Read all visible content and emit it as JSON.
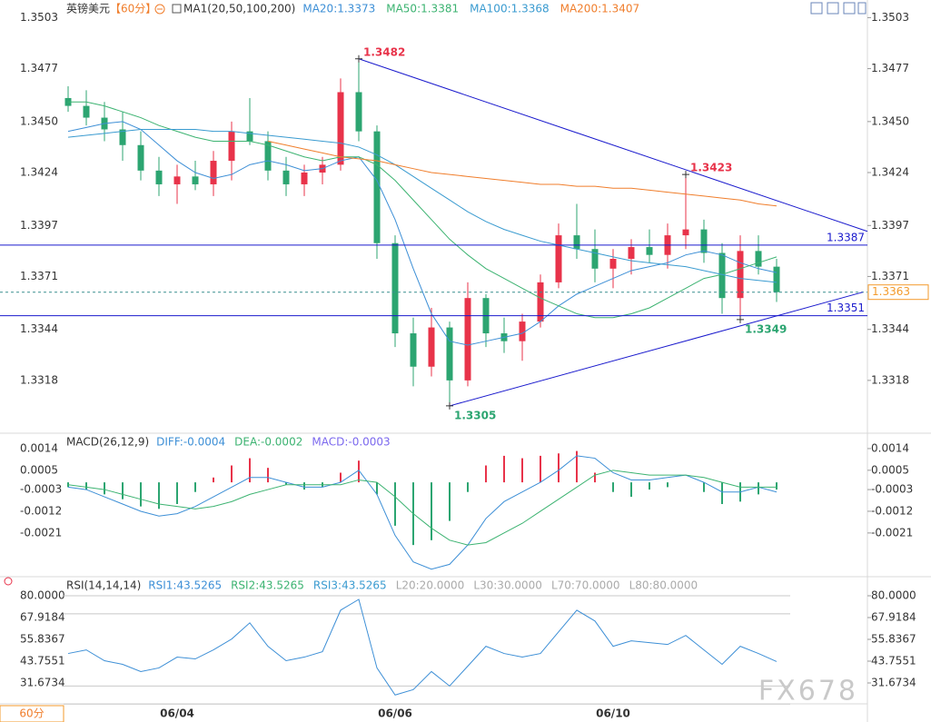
{
  "header": {
    "symbol": "英镑美元",
    "period": "【60分】",
    "ma_title": "MA1(20,50,100,200)"
  },
  "chart_data": [
    {
      "type": "candlestick",
      "categories": [
        null,
        null,
        null,
        null,
        null,
        null,
        "06/04",
        null,
        null,
        null,
        null,
        null,
        null,
        null,
        null,
        null,
        null,
        null,
        "06/06",
        null,
        null,
        null,
        null,
        null,
        null,
        null,
        null,
        null,
        null,
        null,
        "06/10",
        null,
        null,
        null,
        null,
        null,
        null,
        null,
        null,
        null
      ],
      "candles": [
        [
          1.3462,
          1.3468,
          1.3455,
          1.3458
        ],
        [
          1.3458,
          1.3466,
          1.3448,
          1.3452
        ],
        [
          1.3452,
          1.346,
          1.344,
          1.3446
        ],
        [
          1.3446,
          1.3455,
          1.343,
          1.3438
        ],
        [
          1.3438,
          1.3445,
          1.342,
          1.3425
        ],
        [
          1.3425,
          1.3432,
          1.3412,
          1.3418
        ],
        [
          1.3418,
          1.3428,
          1.3408,
          1.3422
        ],
        [
          1.3422,
          1.343,
          1.3415,
          1.3418
        ],
        [
          1.3418,
          1.3435,
          1.3412,
          1.343
        ],
        [
          1.343,
          1.345,
          1.342,
          1.3445
        ],
        [
          1.3445,
          1.3462,
          1.3438,
          1.344
        ],
        [
          1.344,
          1.3445,
          1.342,
          1.3425
        ],
        [
          1.3425,
          1.3432,
          1.3412,
          1.3418
        ],
        [
          1.3418,
          1.3428,
          1.3412,
          1.3424
        ],
        [
          1.3424,
          1.3432,
          1.3418,
          1.3428
        ],
        [
          1.3428,
          1.3472,
          1.3425,
          1.3465
        ],
        [
          1.3465,
          1.3482,
          1.344,
          1.3445
        ],
        [
          1.3445,
          1.3448,
          1.338,
          1.3388
        ],
        [
          1.3388,
          1.3392,
          1.3335,
          1.3342
        ],
        [
          1.3342,
          1.335,
          1.3315,
          1.3325
        ],
        [
          1.3325,
          1.3355,
          1.332,
          1.3345
        ],
        [
          1.3345,
          1.3348,
          1.3305,
          1.3318
        ],
        [
          1.3318,
          1.3368,
          1.3315,
          1.336
        ],
        [
          1.336,
          1.3362,
          1.3335,
          1.3342
        ],
        [
          1.3342,
          1.335,
          1.3332,
          1.3338
        ],
        [
          1.3338,
          1.3352,
          1.3328,
          1.3348
        ],
        [
          1.3348,
          1.3372,
          1.3345,
          1.3368
        ],
        [
          1.3368,
          1.3398,
          1.3365,
          1.3392
        ],
        [
          1.3392,
          1.3408,
          1.338,
          1.3385
        ],
        [
          1.3385,
          1.3395,
          1.3368,
          1.3375
        ],
        [
          1.3375,
          1.3385,
          1.3365,
          1.338
        ],
        [
          1.338,
          1.339,
          1.3372,
          1.3386
        ],
        [
          1.3386,
          1.3395,
          1.3378,
          1.3382
        ],
        [
          1.3382,
          1.3398,
          1.3375,
          1.3392
        ],
        [
          1.3392,
          1.3423,
          1.3385,
          1.3395
        ],
        [
          1.3395,
          1.34,
          1.3378,
          1.3383
        ],
        [
          1.3383,
          1.3388,
          1.3352,
          1.336
        ],
        [
          1.336,
          1.3392,
          1.3349,
          1.3384
        ],
        [
          1.3384,
          1.3392,
          1.3372,
          1.3376
        ],
        [
          1.3376,
          1.338,
          1.3358,
          1.3363
        ]
      ],
      "up_color": "#e8334a",
      "down_color": "#2ca571",
      "series": [
        {
          "label": "MA20:1.3373",
          "color": "#3d8fd6",
          "values": [
            1.3445,
            1.3447,
            1.3449,
            1.345,
            1.3446,
            1.3438,
            1.343,
            1.3424,
            1.3421,
            1.3423,
            1.3428,
            1.343,
            1.3428,
            1.3425,
            1.3426,
            1.343,
            1.3432,
            1.342,
            1.34,
            1.3375,
            1.3352,
            1.3338,
            1.3336,
            1.3338,
            1.334,
            1.3342,
            1.3348,
            1.3356,
            1.3362,
            1.3366,
            1.337,
            1.3374,
            1.3376,
            1.3378,
            1.3382,
            1.3384,
            1.3382,
            1.3378,
            1.3375,
            1.3373
          ]
        },
        {
          "label": "MA50:1.3381",
          "color": "#3cb371",
          "values": [
            1.346,
            1.346,
            1.3458,
            1.3455,
            1.3452,
            1.3448,
            1.3445,
            1.3442,
            1.344,
            1.344,
            1.344,
            1.3438,
            1.3435,
            1.3432,
            1.343,
            1.3432,
            1.3432,
            1.3428,
            1.342,
            1.341,
            1.34,
            1.339,
            1.3382,
            1.3375,
            1.337,
            1.3365,
            1.336,
            1.3356,
            1.3352,
            1.335,
            1.335,
            1.3352,
            1.3355,
            1.336,
            1.3365,
            1.337,
            1.3372,
            1.3375,
            1.3378,
            1.3381
          ]
        },
        {
          "label": "MA100:1.3368",
          "color": "#3a9bd0",
          "values": [
            1.3442,
            1.3443,
            1.3444,
            1.3445,
            1.3446,
            1.3446,
            1.3446,
            1.3446,
            1.3445,
            1.3445,
            1.3444,
            1.3443,
            1.3442,
            1.3441,
            1.344,
            1.3439,
            1.3437,
            1.3433,
            1.3428,
            1.3422,
            1.3416,
            1.341,
            1.3404,
            1.3399,
            1.3395,
            1.3392,
            1.3389,
            1.3387,
            1.3385,
            1.3383,
            1.3381,
            1.3379,
            1.3378,
            1.3377,
            1.3376,
            1.3374,
            1.3372,
            1.337,
            1.3369,
            1.3368
          ]
        },
        {
          "label": "MA200:1.3407",
          "color": "#f07e2c",
          "values": [
            null,
            null,
            null,
            null,
            null,
            null,
            null,
            null,
            null,
            null,
            null,
            1.344,
            1.3438,
            1.3436,
            1.3434,
            1.3432,
            1.3431,
            1.343,
            1.3428,
            1.3426,
            1.3424,
            1.3423,
            1.3422,
            1.3421,
            1.342,
            1.3419,
            1.3418,
            1.3418,
            1.3417,
            1.3417,
            1.3416,
            1.3416,
            1.3415,
            1.3414,
            1.3413,
            1.3412,
            1.3411,
            1.341,
            1.3408,
            1.3407
          ]
        }
      ],
      "ylim": [
        1.3292,
        1.3512
      ],
      "yticks": [
        1.3503,
        1.3477,
        {
          "value": 1.345,
          "label": "1.3450"
        },
        1.3424,
        1.3397,
        1.3371,
        1.3344,
        1.3318
      ],
      "levels": [
        {
          "value": 1.3387,
          "color": "#1a1acd"
        },
        {
          "value": 1.3351,
          "color": "#1a1acd"
        }
      ],
      "trendlines": [
        {
          "from": [
            16,
            1.3482
          ],
          "to": [
            44,
            1.3394
          ],
          "color": "#1a1acd"
        },
        {
          "from": [
            21,
            1.3305
          ],
          "to": [
            43.75,
            1.3363
          ],
          "color": "#1a1acd"
        }
      ],
      "annotations": [
        {
          "x": 16,
          "value": 1.3482,
          "anchor": "high",
          "color": "#e8334a"
        },
        {
          "x": 34,
          "value": 1.3423,
          "anchor": "high",
          "color": "#e8334a"
        },
        {
          "x": 21,
          "value": 1.3305,
          "anchor": "low",
          "color": "#2ca571"
        },
        {
          "x": 37,
          "value": 1.3349,
          "anchor": "low",
          "color": "#2ca571"
        }
      ],
      "last_price": {
        "value": 1.3363,
        "color": "#f39a2b",
        "line_color": "#3a8f8f"
      }
    },
    {
      "type": "macd",
      "title": "MACD(26,12,9)",
      "ylim": [
        -0.0038,
        0.002
      ],
      "yticks": [
        0.0014,
        0.0005,
        -0.0003,
        -0.0012,
        -0.0021
      ],
      "series": [
        {
          "label": "DIFF:-0.0004",
          "color": "#3d8fd6",
          "values": [
            -0.0002,
            -0.0003,
            -0.0006,
            -0.0009,
            -0.0012,
            -0.0014,
            -0.0013,
            -0.001,
            -0.0006,
            -0.0002,
            0.0002,
            0.0002,
            0,
            -0.0002,
            -0.0002,
            0,
            0.0005,
            -0.0005,
            -0.0022,
            -0.0033,
            -0.0036,
            -0.0034,
            -0.0026,
            -0.0015,
            -0.0008,
            -0.0004,
            0,
            0.0005,
            0.0011,
            0.001,
            0.0004,
            0.0001,
            0.0001,
            0.0002,
            0.0003,
            0,
            -0.0004,
            -0.0004,
            -0.0002,
            -0.0004
          ]
        },
        {
          "label": "DEA:-0.0002",
          "color": "#3cb371",
          "values": [
            -0.0001,
            -0.0002,
            -0.0003,
            -0.0005,
            -0.0007,
            -0.0009,
            -0.001,
            -0.0011,
            -0.001,
            -0.0008,
            -0.0005,
            -0.0003,
            -0.0001,
            -0.0001,
            -0.0001,
            -0.0001,
            0.0001,
            0,
            -0.0006,
            -0.0013,
            -0.0019,
            -0.0024,
            -0.0026,
            -0.0025,
            -0.0021,
            -0.0017,
            -0.0012,
            -0.0007,
            -0.0002,
            0.0003,
            0.0005,
            0.0004,
            0.0003,
            0.0003,
            0.0003,
            0.0002,
            0,
            -0.0002,
            -0.0002,
            -0.0002
          ]
        }
      ],
      "histogram": {
        "label": "MACD:-0.0003",
        "label_color": "#7b68ee",
        "up_color": "#e8334a",
        "down_color": "#2ca571",
        "values": [
          -0.0002,
          -0.0003,
          -0.0005,
          -0.0007,
          -0.001,
          -0.0011,
          -0.0009,
          -0.0004,
          0.0002,
          0.0007,
          0.001,
          0.0006,
          -0.0001,
          -0.0003,
          -0.0002,
          0.0004,
          0.0009,
          -0.0005,
          -0.0018,
          -0.0026,
          -0.0024,
          -0.0016,
          -0.0004,
          0.0007,
          0.0011,
          0.001,
          0.0011,
          0.0012,
          0.0013,
          0.0004,
          -0.0004,
          -0.0006,
          -0.0003,
          -0.0002,
          0,
          -0.0004,
          -0.0009,
          -0.0008,
          -0.0005,
          -0.0003
        ]
      }
    },
    {
      "type": "line",
      "title": "RSI(14,14,14)",
      "ylim": [
        20.1,
        88.05
      ],
      "yticks": [
        {
          "value": 80,
          "label": "80.0000"
        },
        67.9184,
        55.8367,
        43.7551,
        31.6734
      ],
      "series": [
        {
          "label": "RSI1:43.5265",
          "color": "#3d8fd6",
          "values": [
            48,
            50,
            44,
            42,
            38,
            40,
            46,
            45,
            50,
            56,
            65,
            52,
            44,
            46,
            49,
            72,
            78,
            40,
            25,
            28,
            38,
            30,
            41,
            52,
            48,
            46,
            48,
            60,
            72,
            66,
            52,
            55,
            54,
            53,
            58,
            50,
            42,
            52,
            48,
            43.5265
          ]
        }
      ],
      "legend": [
        {
          "label": "RSI2:43.5265",
          "color": "#3cb371"
        },
        {
          "label": "RSI3:43.5265",
          "color": "#3a9bd0"
        }
      ],
      "levels": [
        {
          "value": 20,
          "label": "L20:20.0000"
        },
        {
          "value": 30,
          "label": "L30:30.0000"
        },
        {
          "value": 70,
          "label": "L70:70.0000"
        },
        {
          "value": 80,
          "label": "L80:80.0000"
        }
      ],
      "level_color": "#c8c8c8"
    }
  ],
  "period_button": "60分",
  "watermark": "FX678"
}
